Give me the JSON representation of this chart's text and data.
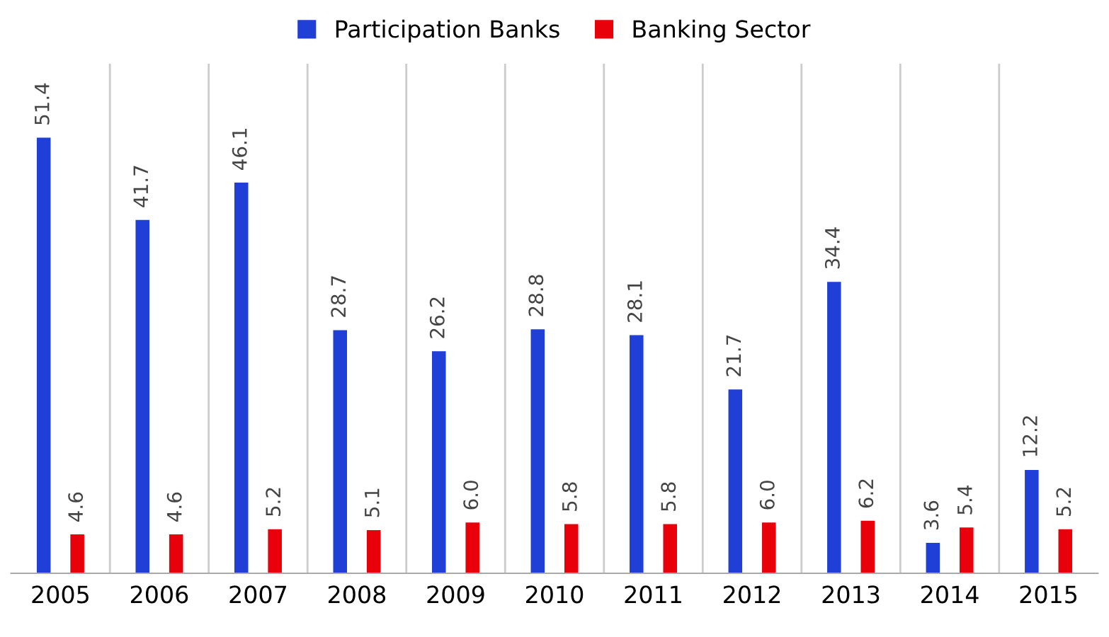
{
  "chart_data": {
    "type": "bar",
    "categories": [
      "2005",
      "2006",
      "2007",
      "2008",
      "2009",
      "2010",
      "2011",
      "2012",
      "2013",
      "2014",
      "2015"
    ],
    "series": [
      {
        "name": "Participation Banks",
        "color": "#1f3fd6",
        "values": [
          51.4,
          41.7,
          46.1,
          28.7,
          26.2,
          28.8,
          28.1,
          21.7,
          34.4,
          3.6,
          12.2
        ],
        "value_labels": [
          "51.4",
          "41.7",
          "46.1",
          "28.7",
          "26.2",
          "28.8",
          "28.1",
          "21.7",
          "34.4",
          "3.6",
          "12.2"
        ]
      },
      {
        "name": "Banking Sector",
        "color": "#e8000b",
        "values": [
          4.6,
          4.6,
          5.2,
          5.1,
          6.0,
          5.8,
          5.8,
          6.0,
          6.2,
          5.4,
          5.2
        ],
        "value_labels": [
          "4.6",
          "4.6",
          "5.2",
          "5.1",
          "6.0",
          "5.8",
          "5.8",
          "6.0",
          "6.2",
          "5.4",
          "5.2"
        ]
      }
    ],
    "grid": "x",
    "legend": "top"
  }
}
